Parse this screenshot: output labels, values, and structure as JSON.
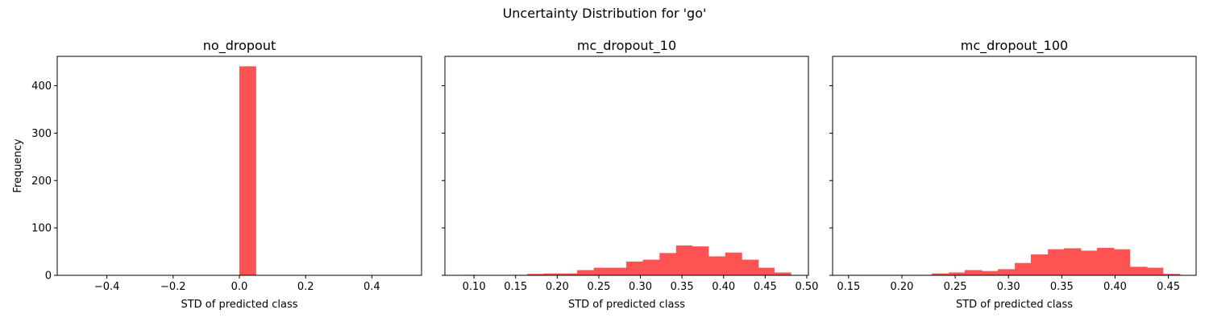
{
  "figure": {
    "title": "Uncertainty Distribution for 'go'"
  },
  "chart_data": [
    {
      "type": "bar",
      "title": "no_dropout",
      "xlabel": "STD of predicted class",
      "ylabel": "Frequency",
      "xlim": [
        -0.55,
        0.55
      ],
      "ylim": [
        0,
        462
      ],
      "xticks": [
        -0.4,
        -0.2,
        0.0,
        0.2,
        0.4
      ],
      "xtick_labels": [
        "−0.4",
        "−0.2",
        "0.0",
        "0.2",
        "0.4"
      ],
      "yticks": [
        0,
        100,
        200,
        300,
        400
      ],
      "ytick_labels": [
        "0",
        "100",
        "200",
        "300",
        "400"
      ],
      "bar_color": "#ff5252",
      "bins": [
        {
          "x0": 0.0,
          "x1": 0.05,
          "count": 441
        }
      ]
    },
    {
      "type": "bar",
      "title": "mc_dropout_10",
      "xlabel": "STD of predicted class",
      "ylabel": "",
      "xlim": [
        0.065,
        0.502
      ],
      "ylim": [
        0,
        462
      ],
      "xticks": [
        0.1,
        0.15,
        0.2,
        0.25,
        0.3,
        0.35,
        0.4,
        0.45,
        0.5
      ],
      "xtick_labels": [
        "0.10",
        "0.15",
        "0.20",
        "0.25",
        "0.30",
        "0.35",
        "0.40",
        "0.45",
        "0.50"
      ],
      "yticks": [
        0,
        100,
        200,
        300,
        400
      ],
      "bar_color": "#ff5252",
      "bins": [
        {
          "x0": 0.085,
          "x1": 0.105,
          "count": 1
        },
        {
          "x0": 0.105,
          "x1": 0.125,
          "count": 0
        },
        {
          "x0": 0.125,
          "x1": 0.145,
          "count": 0
        },
        {
          "x0": 0.145,
          "x1": 0.164,
          "count": 1
        },
        {
          "x0": 0.164,
          "x1": 0.184,
          "count": 3
        },
        {
          "x0": 0.184,
          "x1": 0.204,
          "count": 4
        },
        {
          "x0": 0.204,
          "x1": 0.224,
          "count": 4
        },
        {
          "x0": 0.224,
          "x1": 0.244,
          "count": 11
        },
        {
          "x0": 0.244,
          "x1": 0.263,
          "count": 16
        },
        {
          "x0": 0.263,
          "x1": 0.283,
          "count": 16
        },
        {
          "x0": 0.283,
          "x1": 0.303,
          "count": 29
        },
        {
          "x0": 0.303,
          "x1": 0.323,
          "count": 33
        },
        {
          "x0": 0.323,
          "x1": 0.343,
          "count": 47
        },
        {
          "x0": 0.343,
          "x1": 0.362,
          "count": 63
        },
        {
          "x0": 0.362,
          "x1": 0.382,
          "count": 61
        },
        {
          "x0": 0.382,
          "x1": 0.402,
          "count": 40
        },
        {
          "x0": 0.402,
          "x1": 0.422,
          "count": 48
        },
        {
          "x0": 0.422,
          "x1": 0.442,
          "count": 33
        },
        {
          "x0": 0.442,
          "x1": 0.461,
          "count": 16
        },
        {
          "x0": 0.461,
          "x1": 0.481,
          "count": 6
        }
      ]
    },
    {
      "type": "bar",
      "title": "mc_dropout_100",
      "xlabel": "STD of predicted class",
      "ylabel": "",
      "xlim": [
        0.135,
        0.476
      ],
      "ylim": [
        0,
        462
      ],
      "xticks": [
        0.15,
        0.2,
        0.25,
        0.3,
        0.35,
        0.4,
        0.45
      ],
      "xtick_labels": [
        "0.15",
        "0.20",
        "0.25",
        "0.30",
        "0.35",
        "0.40",
        "0.45"
      ],
      "yticks": [
        0,
        100,
        200,
        300,
        400
      ],
      "bar_color": "#ff5252",
      "bins": [
        {
          "x0": 0.151,
          "x1": 0.166,
          "count": 1
        },
        {
          "x0": 0.166,
          "x1": 0.182,
          "count": 1
        },
        {
          "x0": 0.182,
          "x1": 0.197,
          "count": 1
        },
        {
          "x0": 0.197,
          "x1": 0.213,
          "count": 1
        },
        {
          "x0": 0.213,
          "x1": 0.228,
          "count": 1
        },
        {
          "x0": 0.228,
          "x1": 0.244,
          "count": 4
        },
        {
          "x0": 0.244,
          "x1": 0.259,
          "count": 6
        },
        {
          "x0": 0.259,
          "x1": 0.275,
          "count": 11
        },
        {
          "x0": 0.275,
          "x1": 0.29,
          "count": 9
        },
        {
          "x0": 0.29,
          "x1": 0.306,
          "count": 13
        },
        {
          "x0": 0.306,
          "x1": 0.321,
          "count": 26
        },
        {
          "x0": 0.321,
          "x1": 0.337,
          "count": 44
        },
        {
          "x0": 0.337,
          "x1": 0.352,
          "count": 55
        },
        {
          "x0": 0.352,
          "x1": 0.368,
          "count": 57
        },
        {
          "x0": 0.368,
          "x1": 0.383,
          "count": 52
        },
        {
          "x0": 0.383,
          "x1": 0.399,
          "count": 58
        },
        {
          "x0": 0.399,
          "x1": 0.414,
          "count": 55
        },
        {
          "x0": 0.414,
          "x1": 0.43,
          "count": 18
        },
        {
          "x0": 0.43,
          "x1": 0.445,
          "count": 16
        },
        {
          "x0": 0.445,
          "x1": 0.461,
          "count": 3
        }
      ]
    }
  ]
}
